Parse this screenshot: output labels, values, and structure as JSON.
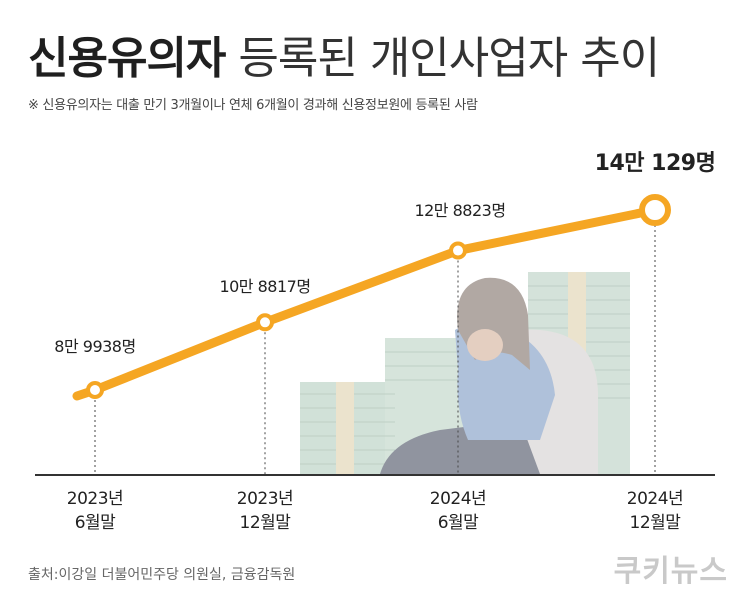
{
  "title_bold": "신용유의자",
  "title_rest": "등록된 개인사업자 추이",
  "subtitle": "※ 신용유의자는 대출 만기 3개월이나 연체 6개월이 경과해 신용정보원에 등록된 사람",
  "source": "출처:이강일 더불어민주당 의원실, 금융감독원",
  "brand": "쿠키뉴스",
  "colors": {
    "line": "#F5A623",
    "axis": "#333333"
  },
  "chart_data": {
    "type": "line",
    "categories": [
      [
        "2023년",
        "6월말"
      ],
      [
        "2023년",
        "12월말"
      ],
      [
        "2024년",
        "6월말"
      ],
      [
        "2024년",
        "12월말"
      ]
    ],
    "values": [
      89938,
      108817,
      128823,
      140129
    ],
    "data_labels": [
      "8만 9938명",
      "10만 8817명",
      "12만 8823명",
      "14만 129명"
    ],
    "highlight_last": true,
    "grid": false
  }
}
